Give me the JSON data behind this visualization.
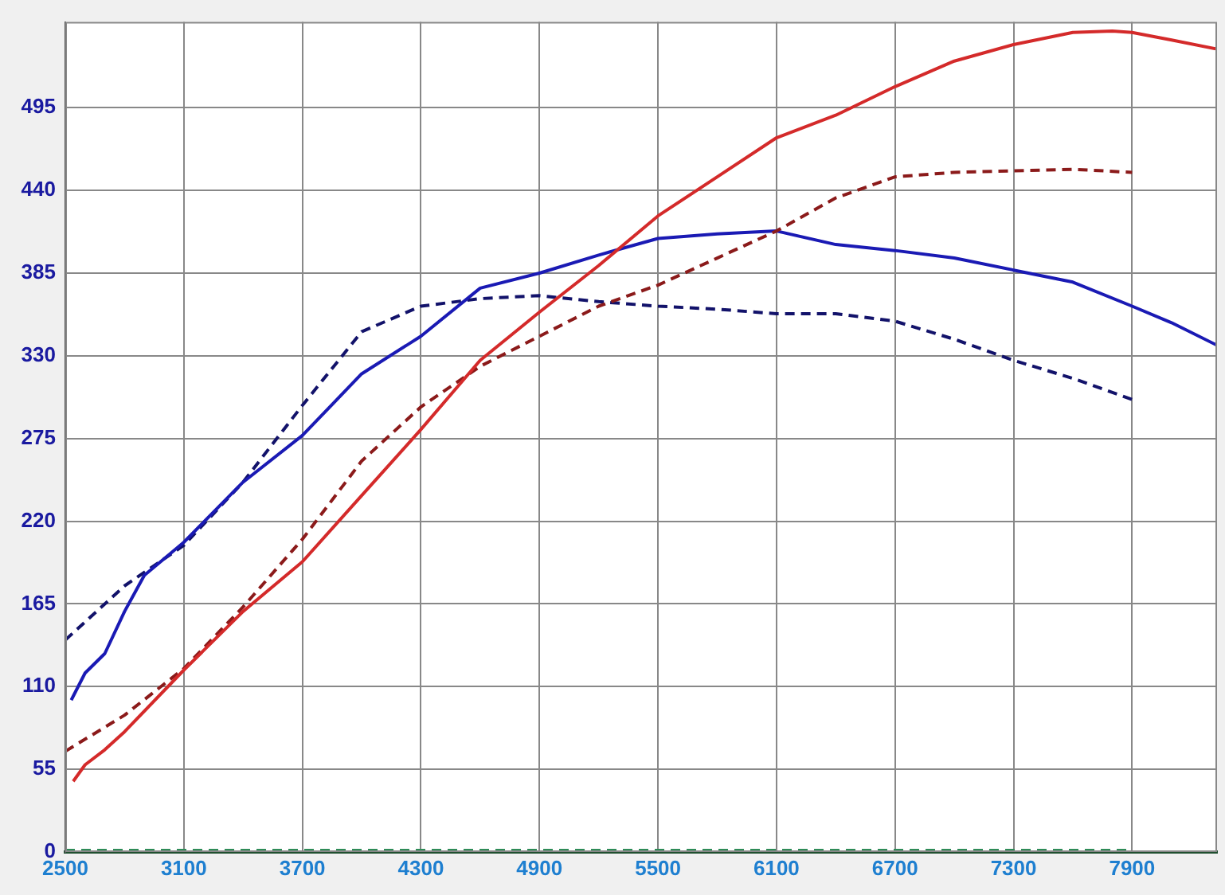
{
  "chart_data": {
    "type": "line",
    "xlim": [
      2500,
      8330
    ],
    "xticks": [
      2500,
      3100,
      3700,
      4300,
      4900,
      5500,
      6100,
      6700,
      7300,
      7900
    ],
    "ylim": [
      0,
      552
    ],
    "yticks": [
      0,
      55,
      110,
      165,
      220,
      275,
      330,
      385,
      440,
      495
    ],
    "grid": true,
    "legend": false,
    "marker": "none",
    "series": [
      {
        "color": "#d42a2a",
        "line_style": "solid",
        "x": [
          2540,
          2600,
          2700,
          2800,
          3100,
          3400,
          3700,
          4000,
          4300,
          4600,
          4900,
          5200,
          5500,
          5800,
          6100,
          6400,
          6700,
          7000,
          7300,
          7600,
          7800,
          7900,
          8100,
          8330
        ],
        "values": [
          47,
          58,
          68,
          80,
          121,
          160,
          193,
          237,
          281,
          327,
          359,
          390,
          423,
          449,
          475,
          490,
          509,
          526,
          537,
          545,
          546,
          545,
          540,
          534
        ]
      },
      {
        "color": "#8b1a1a",
        "line_style": "dashed",
        "x": [
          2500,
          2800,
          3100,
          3400,
          3700,
          4000,
          4300,
          4600,
          4900,
          5200,
          5500,
          5800,
          6100,
          6400,
          6700,
          7000,
          7300,
          7600,
          7900
        ],
        "values": [
          67,
          91,
          122,
          163,
          208,
          260,
          296,
          323,
          343,
          363,
          377,
          395,
          413,
          435,
          449,
          452,
          453,
          454,
          452
        ]
      },
      {
        "color": "#1a1ab4",
        "line_style": "solid",
        "x": [
          2530,
          2600,
          2700,
          2800,
          2900,
          3100,
          3400,
          3700,
          4000,
          4300,
          4600,
          4900,
          5200,
          5500,
          5800,
          6100,
          6400,
          6700,
          7000,
          7300,
          7600,
          7900,
          8100,
          8330
        ],
        "values": [
          101,
          119,
          132,
          160,
          184,
          206,
          246,
          277,
          318,
          343,
          375,
          385,
          397,
          408,
          411,
          413,
          404,
          400,
          395,
          387,
          379,
          363,
          352,
          337
        ]
      },
      {
        "color": "#12126a",
        "line_style": "dashed",
        "x": [
          2500,
          2800,
          3100,
          3400,
          3700,
          4000,
          4300,
          4600,
          4900,
          5200,
          5500,
          5800,
          6100,
          6400,
          6700,
          7000,
          7300,
          7600,
          7900
        ],
        "values": [
          141,
          177,
          204,
          246,
          297,
          346,
          363,
          368,
          370,
          366,
          363,
          361,
          358,
          358,
          353,
          341,
          327,
          315,
          301
        ]
      },
      {
        "color": "#2e8b57",
        "line_style": "dashed",
        "x": [
          2500,
          7900
        ],
        "values": [
          1,
          1
        ]
      }
    ]
  }
}
